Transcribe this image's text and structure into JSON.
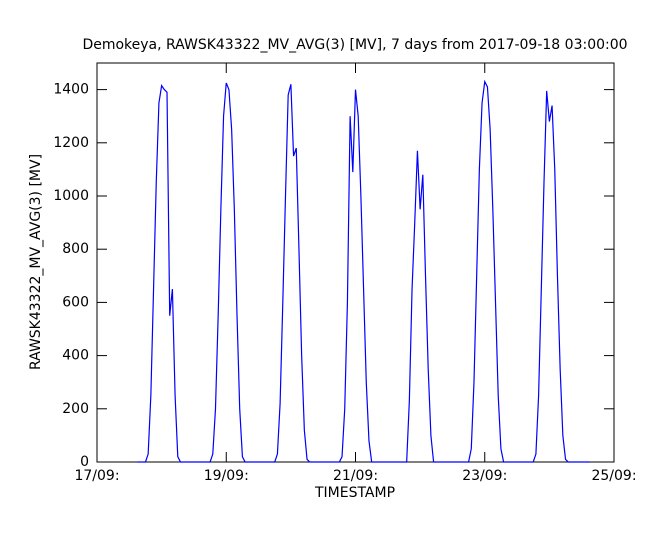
{
  "chart_data": {
    "type": "line",
    "title": "Demokeya, RAWSK43322_MV_AVG(3) [MV], 7 days from  2017-09-18 03:00:00",
    "x_label": "TIMESTAMP",
    "y_label": "RAWSK43322_MV_AVG(3)  [MV]",
    "xlim": [
      0,
      192
    ],
    "xticks": [
      {
        "value": 0,
        "label": "17/09:"
      },
      {
        "value": 48,
        "label": "19/09:"
      },
      {
        "value": 96,
        "label": "21/09:"
      },
      {
        "value": 144,
        "label": "23/09:"
      },
      {
        "value": 192,
        "label": "25/09:"
      }
    ],
    "ylim": [
      0,
      1500
    ],
    "yticks": [
      0,
      200,
      400,
      600,
      800,
      1000,
      1200,
      1400
    ],
    "grid": false,
    "series": [
      {
        "color": "#0000ff",
        "x": [
          15,
          18,
          19,
          20,
          21,
          22,
          23,
          24,
          25,
          26,
          27,
          28,
          29,
          30,
          31,
          42,
          43,
          44,
          45,
          46,
          47,
          48,
          49,
          50,
          51,
          52,
          53,
          54,
          55,
          66,
          67,
          68,
          69,
          70,
          71,
          72,
          73,
          74,
          75,
          76,
          77,
          78,
          79,
          90,
          91,
          92,
          93,
          94,
          95,
          96,
          97,
          98,
          99,
          100,
          101,
          102,
          114,
          115,
          116,
          117,
          118,
          119,
          120,
          121,
          122,
          123,
          124,
          125,
          138,
          139,
          140,
          141,
          142,
          143,
          144,
          145,
          146,
          147,
          148,
          149,
          150,
          151,
          162,
          163,
          164,
          165,
          166,
          167,
          168,
          169,
          170,
          171,
          172,
          173,
          174,
          175,
          183
        ],
        "values": [
          0,
          0,
          30,
          250,
          650,
          1050,
          1350,
          1415,
          1400,
          1390,
          550,
          650,
          250,
          20,
          0,
          0,
          30,
          200,
          550,
          950,
          1300,
          1425,
          1400,
          1250,
          950,
          550,
          200,
          20,
          0,
          0,
          30,
          220,
          600,
          1000,
          1380,
          1420,
          1150,
          1180,
          800,
          400,
          120,
          10,
          0,
          0,
          20,
          200,
          600,
          1300,
          1090,
          1400,
          1300,
          1000,
          650,
          300,
          80,
          0,
          0,
          0,
          230,
          650,
          900,
          1170,
          950,
          1080,
          700,
          350,
          100,
          0,
          0,
          50,
          300,
          700,
          1100,
          1350,
          1430,
          1410,
          1250,
          950,
          600,
          250,
          50,
          0,
          0,
          30,
          250,
          650,
          1050,
          1395,
          1280,
          1340,
          1100,
          700,
          350,
          100,
          10,
          0,
          0
        ]
      }
    ]
  }
}
